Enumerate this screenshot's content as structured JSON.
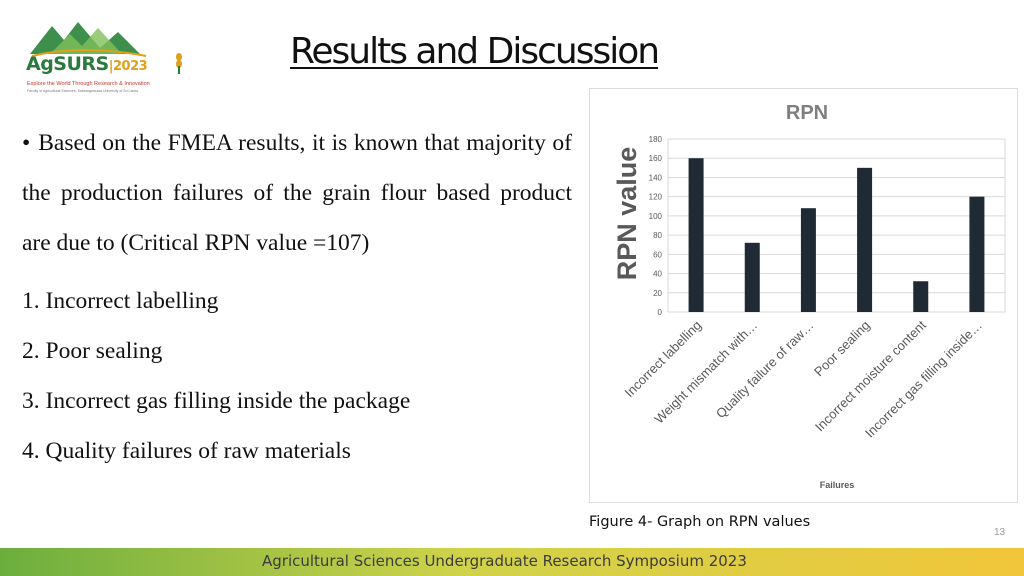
{
  "logo": {
    "wordmark": "AgSURS",
    "year": "2023",
    "tagline": "Explore the World Through Research & Innovation",
    "subline": "Faculty of Agricultural Sciences, Sabaragamuwa University of Sri Lanka"
  },
  "slide": {
    "title": "Results and Discussion",
    "paragraph": "Based on the FMEA results, it is known that majority of the production failures of the grain flour based product are due to (Critical RPN value =107)",
    "items": [
      "1. Incorrect labelling",
      "2. Poor sealing",
      "3. Incorrect gas filling inside the package",
      "4. Quality failures of raw materials"
    ],
    "caption": "Figure 4- Graph on RPN values",
    "footer": "Agricultural Sciences Undergraduate Research Symposium 2023",
    "page_number": "13"
  },
  "colors": {
    "bar": "#1f2a35",
    "title_chart": "#7f7f7f",
    "grid": "#d9d9d9"
  },
  "chart_data": {
    "type": "bar",
    "title": "RPN",
    "ylabel": "RPN value",
    "xlabel": "Failures",
    "categories": [
      "Incorrect labelling",
      "Weight mismatch with…",
      "Quality failure of raw…",
      "Poor sealing",
      "Incorrect moisture content",
      "Incorrect gas filling inside…"
    ],
    "values": [
      160,
      72,
      108,
      150,
      32,
      120
    ],
    "ylim": [
      0,
      180
    ],
    "yticks": [
      0,
      20,
      40,
      60,
      80,
      100,
      120,
      140,
      160,
      180
    ],
    "grid": true,
    "legend": "none"
  }
}
